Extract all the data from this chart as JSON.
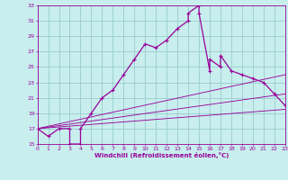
{
  "title": "",
  "xlabel": "Windchill (Refroidissement éolien,°C)",
  "ylabel": "",
  "bg_color": "#c8eeee",
  "line_color": "#990099",
  "grid_color": "#99cccc",
  "xlim": [
    0,
    23
  ],
  "ylim": [
    15,
    33
  ],
  "xticks": [
    0,
    1,
    2,
    3,
    4,
    5,
    6,
    7,
    8,
    9,
    10,
    11,
    12,
    13,
    14,
    15,
    16,
    17,
    18,
    19,
    20,
    21,
    22,
    23
  ],
  "yticks": [
    15,
    17,
    19,
    21,
    23,
    25,
    27,
    29,
    31,
    33
  ],
  "main_x": [
    0,
    1,
    2,
    3,
    3,
    4,
    4,
    5,
    6,
    7,
    8,
    9,
    10,
    11,
    12,
    13,
    14,
    14,
    15,
    15,
    16,
    16,
    17,
    17,
    18,
    19,
    20,
    21,
    22,
    23
  ],
  "main_y": [
    17,
    16,
    17,
    17,
    15,
    15,
    17,
    19,
    21,
    22,
    24,
    26,
    28,
    27.5,
    28.5,
    30,
    31,
    32,
    33,
    32,
    24.5,
    26,
    25,
    26.5,
    24.5,
    24,
    23.5,
    23,
    21.5,
    20
  ],
  "trend1_x": [
    0,
    23
  ],
  "trend1_y": [
    17,
    19.5
  ],
  "trend2_x": [
    0,
    23
  ],
  "trend2_y": [
    17,
    21.5
  ],
  "trend3_x": [
    0,
    23
  ],
  "trend3_y": [
    17,
    24.0
  ],
  "marker": "+",
  "markersize": 3.5,
  "linewidth": 0.9
}
